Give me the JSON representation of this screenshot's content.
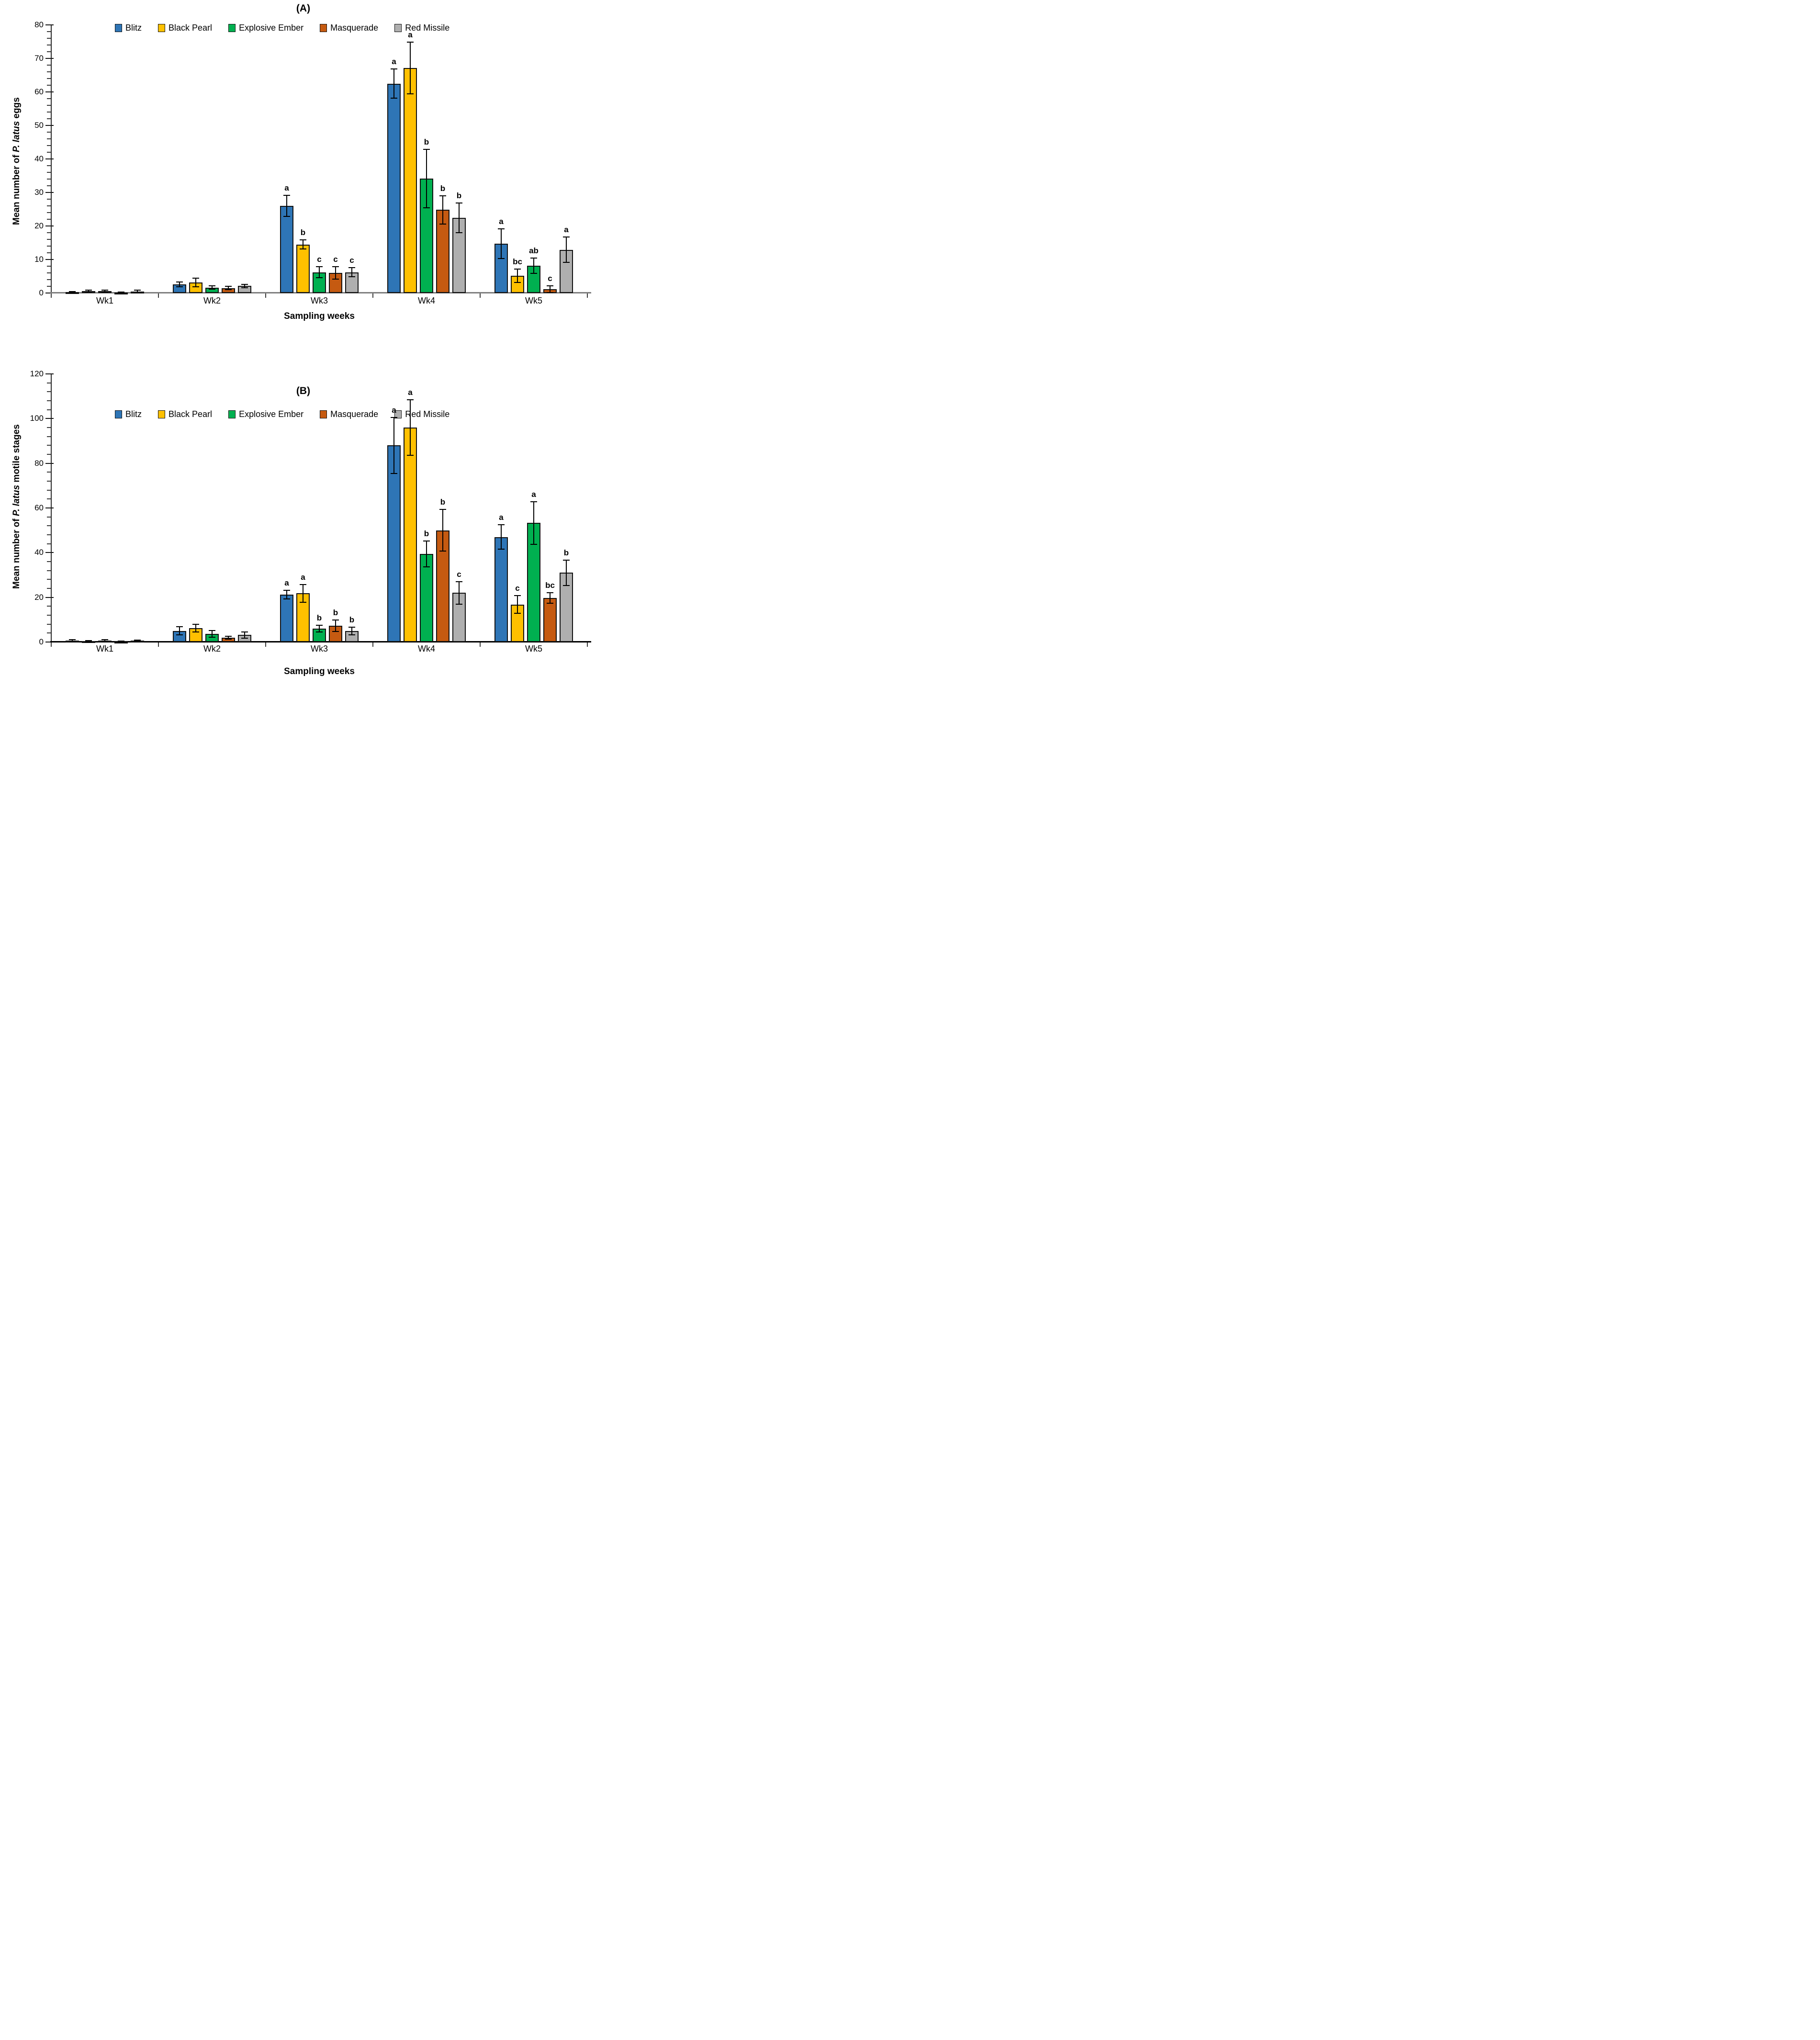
{
  "page": {
    "background": "#ffffff",
    "figure_type": "two-panel grouped bar chart with error bars and significance letters"
  },
  "chart_data": [
    {
      "type": "bar",
      "panel_label": "(A)",
      "ylabel": {
        "prefix": "Mean number of ",
        "italic": "P. latus",
        "suffix": " eggs"
      },
      "xlabel": "Sampling weeks",
      "ylim": [
        0,
        80
      ],
      "ytick_major_step": 10,
      "ytick_minor_step": 2,
      "ytick_labels": [
        "0",
        "10",
        "20",
        "30",
        "40",
        "50",
        "60",
        "70",
        "80"
      ],
      "grid": "off",
      "legend_position": "top-center",
      "error_bars": true,
      "baseline_color": "#7f7f7f",
      "categories": [
        "Wk1",
        "Wk2",
        "Wk3",
        "Wk4",
        "Wk5"
      ],
      "series": [
        {
          "name": "Blitz",
          "color": "#2E75B6",
          "values": [
            0.3,
            2.6,
            26.0,
            62.5,
            14.7
          ],
          "errors": [
            0.2,
            0.7,
            3.1,
            4.4,
            4.4
          ],
          "letters": [
            "",
            "",
            "a",
            "a",
            "a"
          ]
        },
        {
          "name": "Black Pearl",
          "color": "#FFC000",
          "values": [
            0.6,
            3.2,
            14.5,
            67.2,
            5.2
          ],
          "errors": [
            0.3,
            1.3,
            1.3,
            7.7,
            2.0
          ],
          "letters": [
            "",
            "",
            "b",
            "a",
            "bc"
          ]
        },
        {
          "name": "Explosive Ember",
          "color": "#00B050",
          "values": [
            0.6,
            1.6,
            6.2,
            34.2,
            8.2
          ],
          "errors": [
            0.3,
            0.5,
            1.6,
            8.7,
            2.3
          ],
          "letters": [
            "",
            "",
            "c",
            "b",
            "ab"
          ]
        },
        {
          "name": "Masquerade",
          "color": "#C55A11",
          "values": [
            0.2,
            1.5,
            6.0,
            24.8,
            1.2
          ],
          "errors": [
            0.1,
            0.5,
            1.8,
            4.2,
            1.0
          ],
          "letters": [
            "",
            "",
            "c",
            "b",
            "c"
          ]
        },
        {
          "name": "Red Missile",
          "color": "#AFAFAF",
          "values": [
            0.5,
            2.1,
            6.2,
            22.4,
            12.9
          ],
          "errors": [
            0.3,
            0.5,
            1.4,
            4.4,
            3.8
          ],
          "letters": [
            "",
            "",
            "c",
            "b",
            "a"
          ]
        }
      ]
    },
    {
      "type": "bar",
      "panel_label": "(B)",
      "ylabel": {
        "prefix": "Mean number of ",
        "italic": "P. latus",
        "suffix": " motile stages"
      },
      "xlabel": "Sampling weeks",
      "ylim": [
        0,
        120
      ],
      "ytick_major_step": 20,
      "ytick_minor_step": 4,
      "ytick_labels": [
        "0",
        "20",
        "40",
        "60",
        "80",
        "100",
        "120"
      ],
      "grid": "off",
      "legend_position": "top-center",
      "error_bars": true,
      "baseline_color": "#000000",
      "categories": [
        "Wk1",
        "Wk2",
        "Wk3",
        "Wk4",
        "Wk5"
      ],
      "series": [
        {
          "name": "Blitz",
          "color": "#2E75B6",
          "values": [
            0.6,
            5.0,
            21.2,
            88.0,
            47.0
          ],
          "errors": [
            0.4,
            1.8,
            2.0,
            12.5,
            5.5
          ],
          "letters": [
            "",
            "",
            "a",
            "a",
            "a"
          ]
        },
        {
          "name": "Black Pearl",
          "color": "#FFC000",
          "values": [
            0.4,
            6.2,
            21.8,
            96.0,
            16.8
          ],
          "errors": [
            0.3,
            1.7,
            4.0,
            12.5,
            3.9
          ],
          "letters": [
            "",
            "",
            "a",
            "a",
            "c"
          ]
        },
        {
          "name": "Explosive Ember",
          "color": "#00B050",
          "values": [
            0.65,
            3.7,
            6.0,
            39.4,
            53.3
          ],
          "errors": [
            0.35,
            1.5,
            1.5,
            5.8,
            9.5
          ],
          "letters": [
            "",
            "",
            "b",
            "b",
            "a"
          ]
        },
        {
          "name": "Masquerade",
          "color": "#C55A11",
          "values": [
            0.3,
            1.9,
            7.3,
            50.0,
            19.7
          ],
          "errors": [
            0.2,
            0.7,
            2.5,
            9.3,
            2.4
          ],
          "letters": [
            "",
            "",
            "b",
            "b",
            "bc"
          ]
        },
        {
          "name": "Red Missile",
          "color": "#AFAFAF",
          "values": [
            0.55,
            3.2,
            5.0,
            22.0,
            31.0
          ],
          "errors": [
            0.3,
            1.4,
            1.7,
            5.0,
            5.7
          ],
          "letters": [
            "",
            "",
            "b",
            "c",
            "b"
          ]
        }
      ]
    }
  ]
}
